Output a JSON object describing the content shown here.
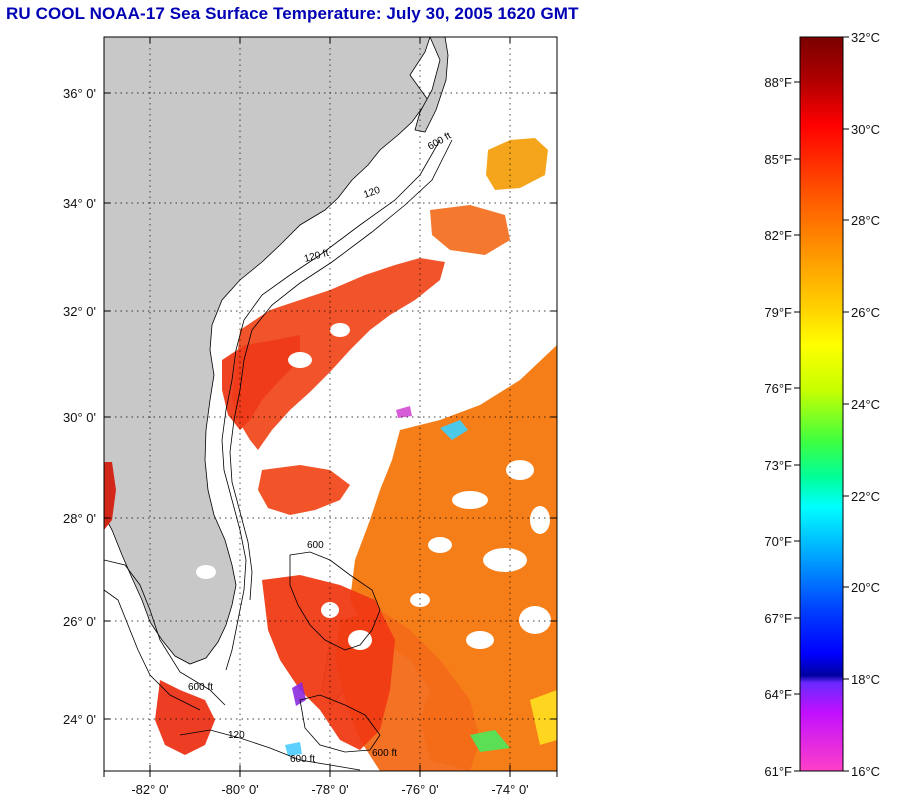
{
  "title": "RU COOL  NOAA-17  Sea Surface Temperature:  July 30, 2005 1620 GMT",
  "map": {
    "latitude_labels": [
      "36° 0'",
      "34° 0'",
      "32° 0'",
      "30° 0'",
      "28° 0'",
      "26° 0'",
      "24° 0'"
    ],
    "longitude_labels": [
      "-82° 0'",
      "-80° 0'",
      "-78° 0'",
      "-76° 0'",
      "-74° 0'"
    ],
    "isobath_labels": [
      "120",
      "600 ft",
      "120 ft",
      "600",
      "600 ft",
      "120",
      "600 ft",
      "600 ft"
    ]
  },
  "colorbar": {
    "celsius_labels": [
      "32°C",
      "30°C",
      "28°C",
      "26°C",
      "24°C",
      "22°C",
      "20°C",
      "18°C",
      "16°C"
    ],
    "fahrenheit_labels": [
      "88°F",
      "85°F",
      "82°F",
      "79°F",
      "76°F",
      "73°F",
      "70°F",
      "67°F",
      "64°F",
      "61°F"
    ]
  },
  "colors": {
    "title": "#0000b4",
    "land": "#c8c8c8",
    "ocean_no_data": "#ffffff",
    "sst_warm": "#f04a20",
    "sst_orange": "#f57a12"
  }
}
